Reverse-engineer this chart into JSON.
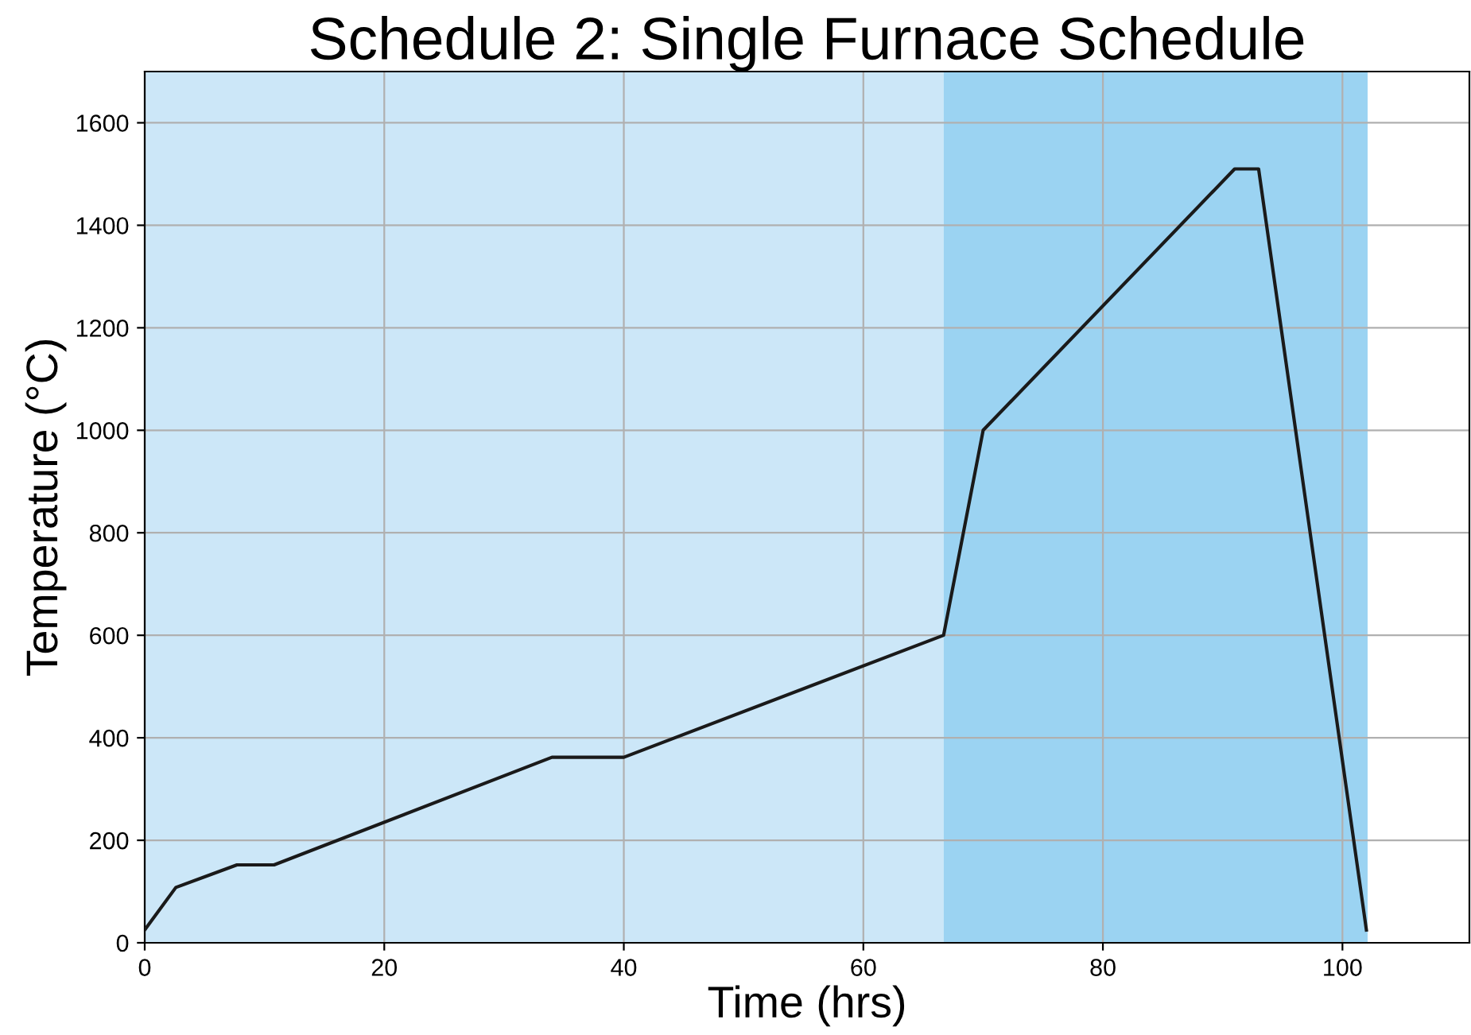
{
  "chart_data": {
    "type": "line",
    "title": "Schedule 2: Single Furnace Schedule",
    "xlabel": "Time (hrs)",
    "ylabel": "Temperature (°C)",
    "x": [
      0,
      2.6,
      7.7,
      10.8,
      34,
      40,
      66.7,
      70,
      91,
      93,
      102
    ],
    "series": [
      {
        "color": "#1a1a1a",
        "values": [
          25,
          108,
          152,
          152,
          362,
          362,
          600,
          1000,
          1510,
          1510,
          25
        ]
      }
    ],
    "xlim": [
      0,
      110.6
    ],
    "ylim": [
      0,
      1700
    ],
    "xticks": [
      0,
      20,
      40,
      60,
      80,
      100
    ],
    "yticks": [
      0,
      200,
      400,
      600,
      800,
      1000,
      1200,
      1400,
      1600
    ],
    "grid": true,
    "line_style": "solid",
    "bands": [
      {
        "axis": "x",
        "from": 0,
        "to": 66.7,
        "color": "#cce7f8"
      },
      {
        "axis": "x",
        "from": 66.7,
        "to": 102.1,
        "color": "#9bd3f2"
      }
    ]
  }
}
